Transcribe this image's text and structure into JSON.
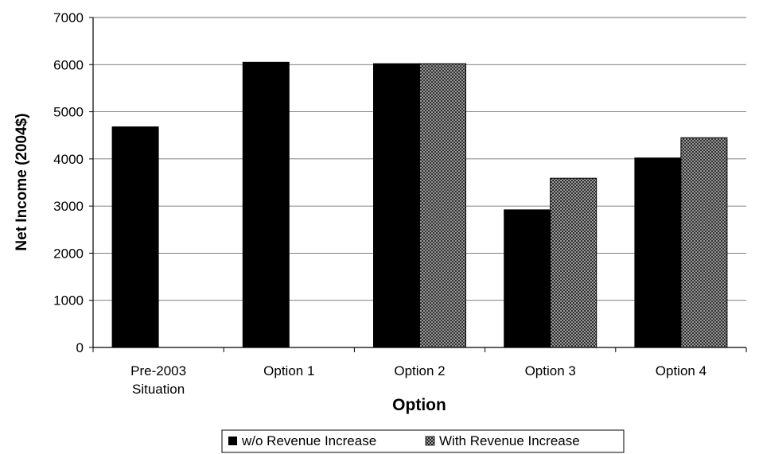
{
  "chart_data": {
    "type": "bar",
    "title": "",
    "xlabel": "Option",
    "ylabel": "Net Income (2004$)",
    "ylim": [
      0,
      7000
    ],
    "yticks": [
      0,
      1000,
      2000,
      3000,
      4000,
      5000,
      6000,
      7000
    ],
    "grid": true,
    "legend_position": "bottom",
    "categories": [
      [
        "Pre-2003",
        "Situation"
      ],
      [
        "Option 1"
      ],
      [
        "Option 2"
      ],
      [
        "Option 3"
      ],
      [
        "Option 4"
      ]
    ],
    "series": [
      {
        "name": "w/o Revenue Increase",
        "color": "#000000",
        "pattern": "solid",
        "values": [
          4680,
          6050,
          6020,
          2920,
          4020
        ]
      },
      {
        "name": "With Revenue Increase",
        "color": "#8a8a8a",
        "pattern": "dotted",
        "values": [
          null,
          null,
          6020,
          3590,
          4450
        ]
      }
    ]
  }
}
